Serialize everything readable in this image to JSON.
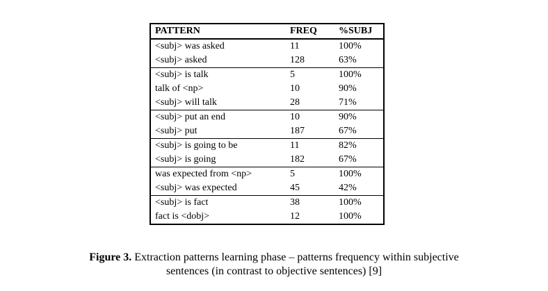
{
  "page": {
    "background_color": "#ffffff",
    "text_color": "#000000"
  },
  "table": {
    "headers": {
      "pattern": "PATTERN",
      "freq": "FREQ",
      "subj": "%SUBJ"
    },
    "rows": [
      {
        "pattern": "<subj> was asked",
        "freq": "11",
        "subj": "100%"
      },
      {
        "pattern": "<subj> asked",
        "freq": "128",
        "subj": "63%"
      },
      {
        "pattern": "<subj> is talk",
        "freq": "5",
        "subj": "100%"
      },
      {
        "pattern": "talk of <np>",
        "freq": "10",
        "subj": "90%"
      },
      {
        "pattern": "<subj> will talk",
        "freq": "28",
        "subj": "71%"
      },
      {
        "pattern": "<subj> put an end",
        "freq": "10",
        "subj": "90%"
      },
      {
        "pattern": "<subj> put",
        "freq": "187",
        "subj": "67%"
      },
      {
        "pattern": "<subj> is going to be",
        "freq": "11",
        "subj": "82%"
      },
      {
        "pattern": "<subj> is going",
        "freq": "182",
        "subj": "67%"
      },
      {
        "pattern": "was expected from <np>",
        "freq": "5",
        "subj": "100%"
      },
      {
        "pattern": "<subj> was expected",
        "freq": "45",
        "subj": "42%"
      },
      {
        "pattern": "<subj> is fact",
        "freq": "38",
        "subj": "100%"
      },
      {
        "pattern": "fact is <dobj>",
        "freq": "12",
        "subj": "100%"
      }
    ]
  },
  "caption": {
    "label": "Figure 3.",
    "line1": "Extraction patterns learning phase – patterns frequency within subjective",
    "line2": "sentences (in contrast to objective sentences) [9]"
  }
}
